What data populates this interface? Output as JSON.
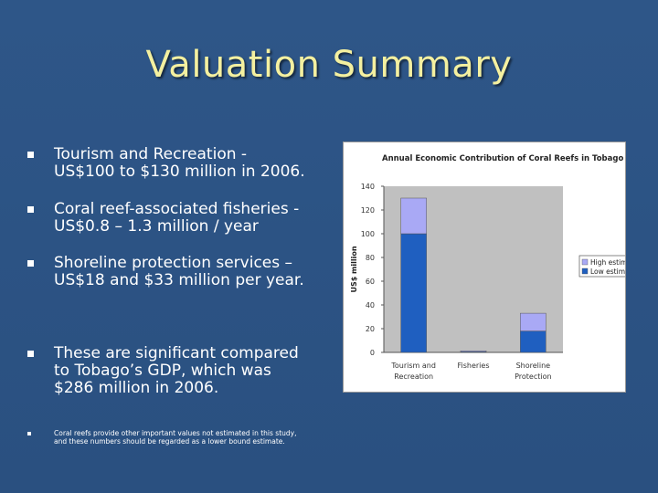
{
  "slide": {
    "title": "Valuation Summary",
    "bullets": [
      {
        "line1": "Tourism and Recreation -",
        "line2": "US$100 to $130 million in 2006."
      },
      {
        "line1": "Coral reef-associated fisheries -",
        "line2": "US$0.8 – 1.3 million / year"
      },
      {
        "line1": "Shoreline protection services –",
        "line2": "US$18 and $33 million per year."
      },
      {
        "line1": "These are significant compared",
        "line2": "to Tobago’s GDP, which was",
        "line3": "$286 million in 2006."
      },
      {
        "line1": "Coral reefs provide other important values not estimated in this study,",
        "line2": "and these numbers should be regarded as a lower bound estimate."
      }
    ]
  },
  "chart_data": {
    "type": "bar",
    "stacked": true,
    "title": "Annual Economic Contribution of Coral Reefs in Tobago",
    "xlabel": "",
    "ylabel": "US$ million",
    "ylim": [
      0,
      140
    ],
    "yticks": [
      0,
      20,
      40,
      60,
      80,
      100,
      120,
      140
    ],
    "categories": [
      [
        "Tourism and",
        "Recreation"
      ],
      [
        "Fisheries"
      ],
      [
        "Shoreline",
        "Protection"
      ]
    ],
    "series": [
      {
        "name": "Low estimate",
        "values": [
          100,
          0.8,
          18
        ],
        "color": "#1f5fc0"
      },
      {
        "name": "High estimate",
        "values": [
          30,
          0.5,
          15
        ],
        "color": "#a9a9f5"
      }
    ],
    "legend_position": "right",
    "grid": false
  },
  "colors": {
    "background": "#2c5282",
    "title": "#f4f0a0",
    "text": "#ffffff",
    "chart_panel": "#c0c0c0"
  }
}
